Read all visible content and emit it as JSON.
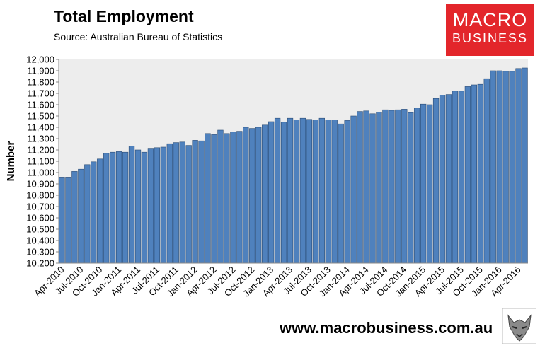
{
  "header": {
    "title": "Total Employment",
    "subtitle": "Source: Australian Bureau of Statistics"
  },
  "logo": {
    "line1": "MACRO",
    "line2": "BUSINESS",
    "color": "#e3262b"
  },
  "footer": {
    "url": "www.macrobusiness.com.au"
  },
  "chart_data": {
    "type": "bar",
    "title": "Total Employment",
    "ylabel": "Number",
    "xlabel": "",
    "ylim": [
      10200,
      12000
    ],
    "yticks": [
      10200,
      10300,
      10400,
      10500,
      10600,
      10700,
      10800,
      10900,
      11000,
      11100,
      11200,
      11300,
      11400,
      11500,
      11600,
      11700,
      11800,
      11900,
      12000
    ],
    "ytick_labels": [
      "10,200",
      "10,300",
      "10,400",
      "10,500",
      "10,600",
      "10,700",
      "10,800",
      "10,900",
      "11,000",
      "11,100",
      "11,200",
      "11,300",
      "11,400",
      "11,500",
      "11,600",
      "11,700",
      "11,800",
      "11,900",
      "12,000"
    ],
    "xtick_labels": [
      "Apr-2010",
      "Jul-2010",
      "Oct-2010",
      "Jan-2011",
      "Apr-2011",
      "Jul-2011",
      "Oct-2011",
      "Jan-2012",
      "Apr-2012",
      "Jul-2012",
      "Oct-2012",
      "Jan-2013",
      "Apr-2013",
      "Jul-2013",
      "Oct-2013",
      "Jan-2014",
      "Apr-2014",
      "Jul-2014",
      "Oct-2014",
      "Jan-2015",
      "Apr-2015",
      "Jul-2015",
      "Oct-2015",
      "Jan-2016",
      "Apr-2016"
    ],
    "bar_color": "#4f81bd",
    "plot_background": "#ededed",
    "values": [
      10960,
      10960,
      11010,
      11030,
      11070,
      11095,
      11120,
      11170,
      11180,
      11185,
      11180,
      11235,
      11200,
      11180,
      11215,
      11220,
      11225,
      11255,
      11265,
      11270,
      11240,
      11285,
      11280,
      11345,
      11335,
      11375,
      11345,
      11360,
      11365,
      11400,
      11390,
      11400,
      11420,
      11450,
      11480,
      11445,
      11480,
      11465,
      11480,
      11470,
      11465,
      11480,
      11465,
      11465,
      11430,
      11460,
      11500,
      11540,
      11545,
      11520,
      11535,
      11555,
      11550,
      11555,
      11560,
      11530,
      11570,
      11605,
      11600,
      11655,
      11685,
      11690,
      11720,
      11720,
      11760,
      11775,
      11780,
      11830,
      11900,
      11900,
      11895,
      11895,
      11920,
      11925
    ]
  }
}
